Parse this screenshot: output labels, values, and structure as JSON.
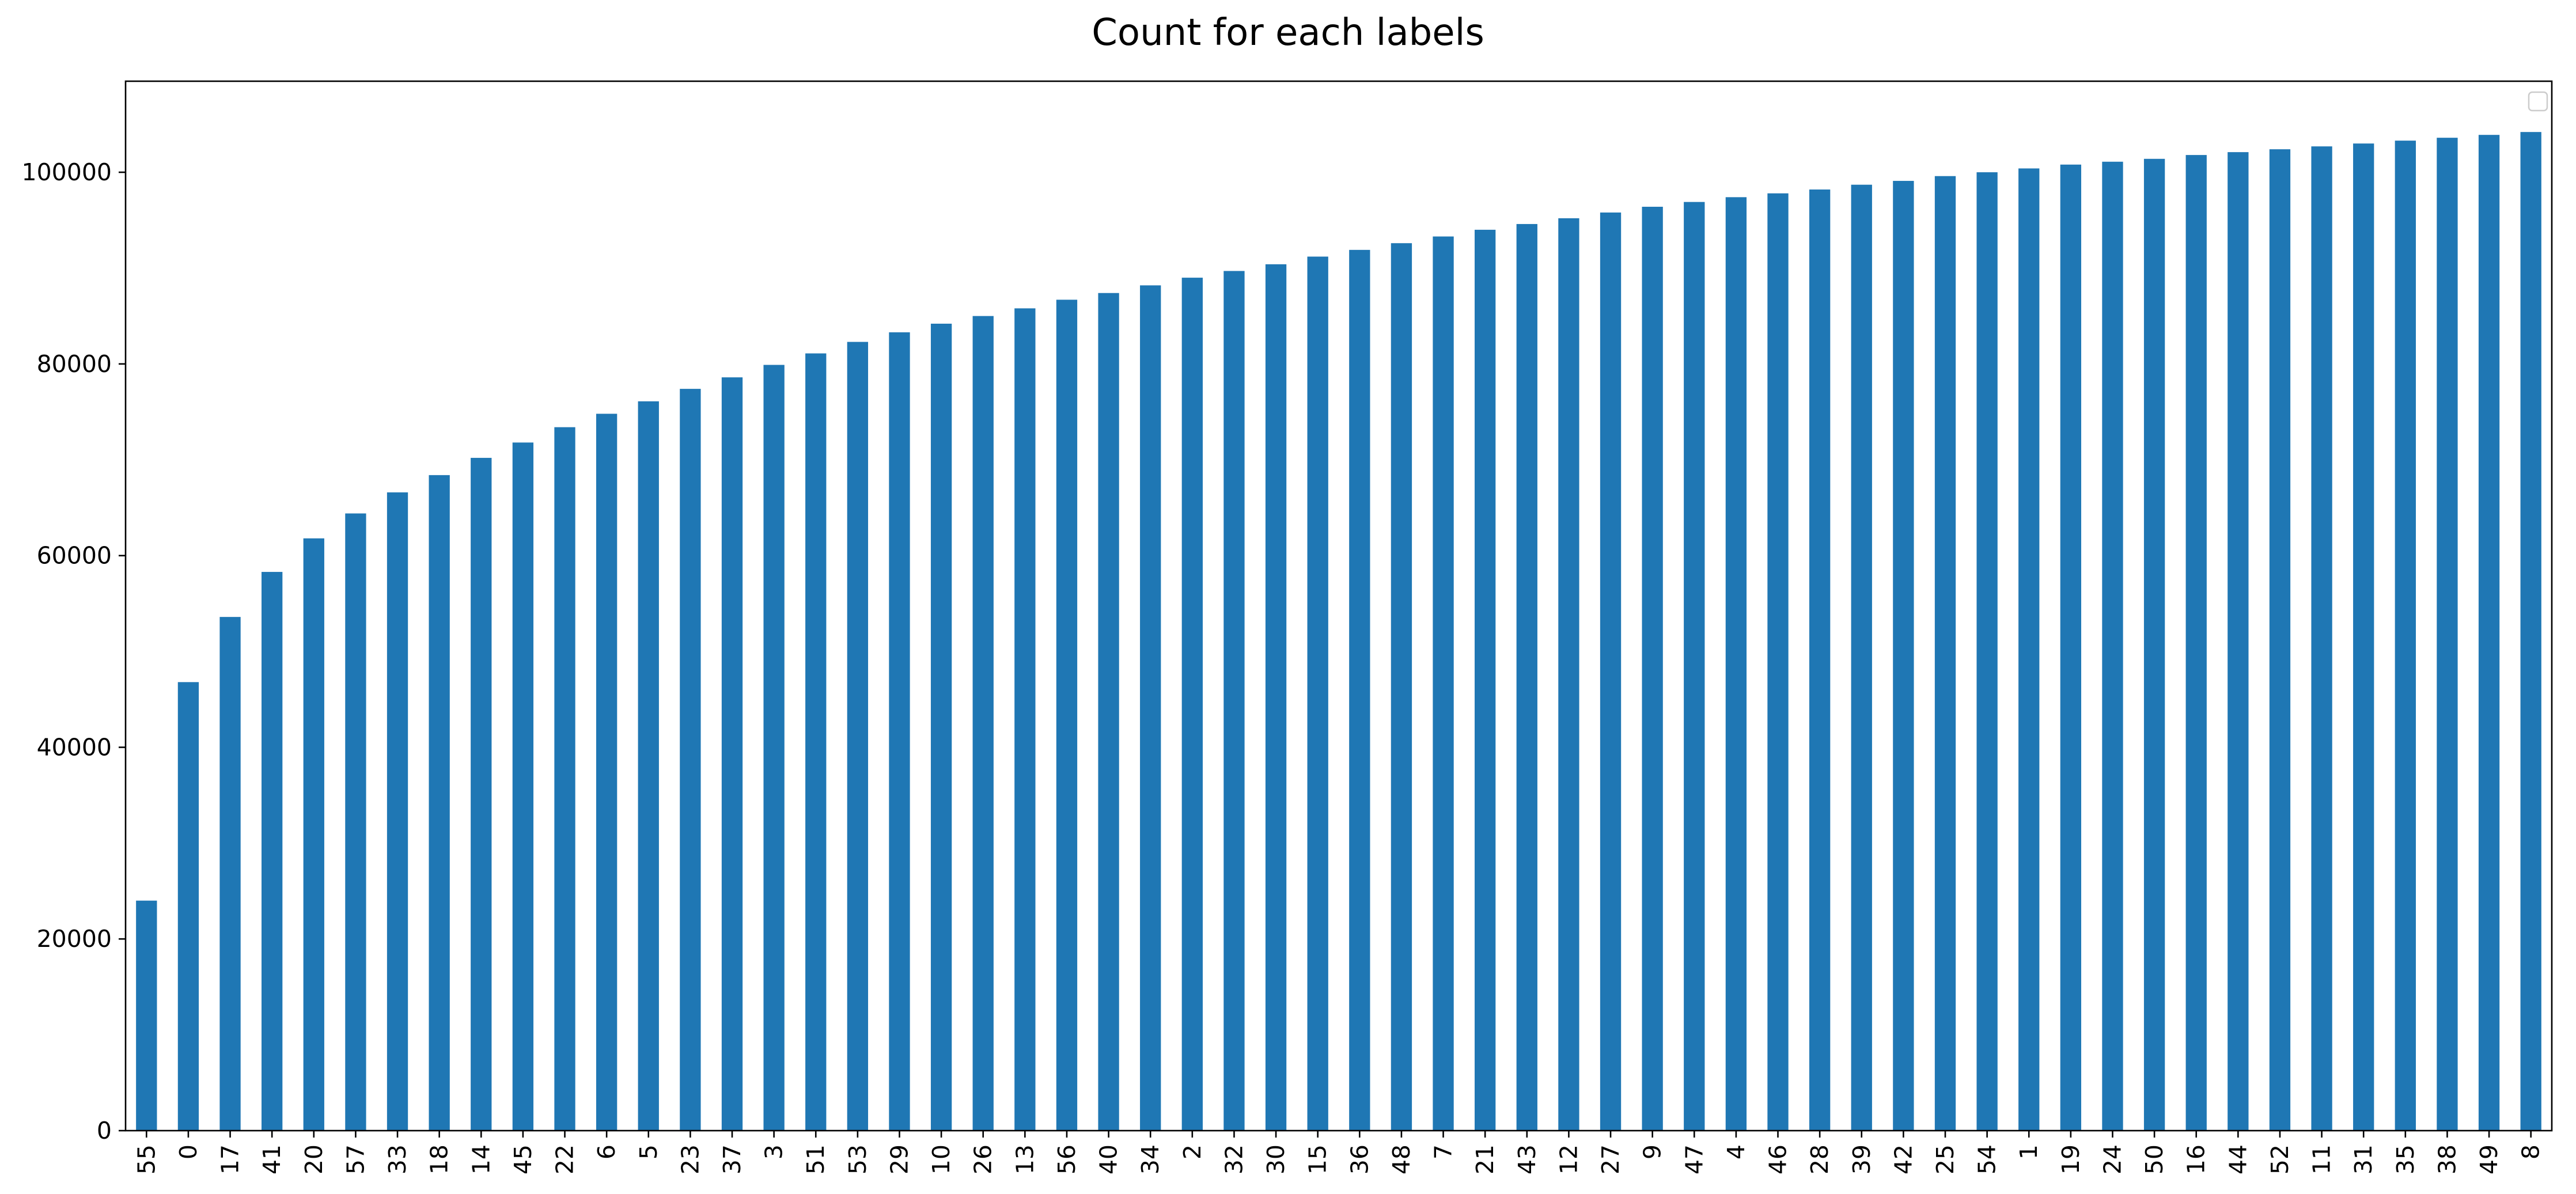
{
  "chart_data": {
    "type": "bar",
    "title": "Count for each labels",
    "xlabel": "",
    "ylabel": "",
    "categories": [
      "55",
      "0",
      "17",
      "41",
      "20",
      "57",
      "33",
      "18",
      "14",
      "45",
      "22",
      "6",
      "5",
      "23",
      "37",
      "3",
      "51",
      "53",
      "29",
      "10",
      "26",
      "13",
      "56",
      "40",
      "34",
      "2",
      "32",
      "30",
      "15",
      "36",
      "48",
      "7",
      "21",
      "43",
      "12",
      "27",
      "9",
      "47",
      "4",
      "46",
      "28",
      "39",
      "42",
      "25",
      "54",
      "1",
      "19",
      "24",
      "50",
      "16",
      "44",
      "52",
      "11",
      "31",
      "35",
      "38",
      "49",
      "8"
    ],
    "values": [
      24000,
      46800,
      53600,
      58300,
      61800,
      64400,
      66600,
      68400,
      70200,
      71800,
      73400,
      74800,
      76100,
      77400,
      78600,
      79900,
      81100,
      82300,
      83300,
      84200,
      85000,
      85800,
      86700,
      87400,
      88200,
      89000,
      89700,
      90400,
      91200,
      91900,
      92600,
      93300,
      94000,
      94600,
      95200,
      95800,
      96400,
      96900,
      97400,
      97800,
      98200,
      98700,
      99100,
      99600,
      100000,
      100400,
      100800,
      101100,
      101400,
      101800,
      102100,
      102400,
      102700,
      103000,
      103300,
      103600,
      103900,
      104200
    ],
    "ylim": [
      0,
      109500
    ],
    "yticks": [
      0,
      20000,
      40000,
      60000,
      80000,
      100000
    ],
    "bar_color": "#1f77b4",
    "grid": false,
    "legend": {
      "placement": "top-right",
      "entries": []
    }
  }
}
